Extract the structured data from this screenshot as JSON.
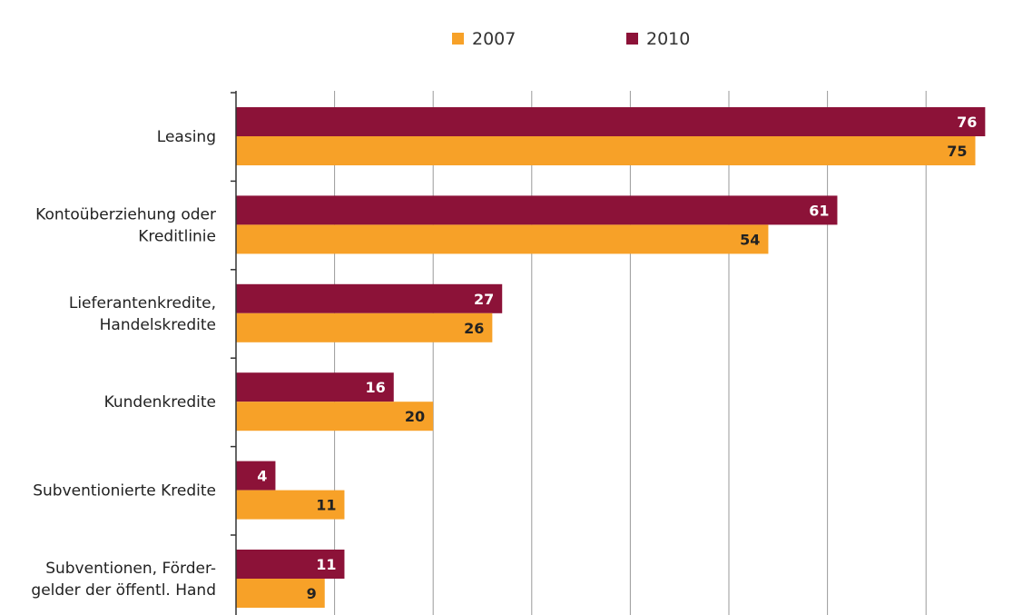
{
  "chart_data": {
    "type": "bar",
    "orientation": "horizontal",
    "categories": [
      [
        "Leasing"
      ],
      [
        "Kontoüberziehung oder",
        "Kreditlinie"
      ],
      [
        "Lieferantenkredite,",
        "Handelskredite"
      ],
      [
        "Kundenkredite"
      ],
      [
        "Subventionierte Kredite"
      ],
      [
        "Subventionen, Förder-",
        "gelder der öffentl. Hand"
      ]
    ],
    "series": [
      {
        "name": "2010",
        "color": "#8c1238",
        "label_color": "#ffffff",
        "values": [
          76,
          61,
          27,
          16,
          4,
          11
        ]
      },
      {
        "name": "2007",
        "color": "#f7a128",
        "label_color": "#222222",
        "values": [
          75,
          54,
          26,
          20,
          11,
          9
        ]
      }
    ],
    "legend_order": [
      "2007",
      "2010"
    ],
    "legend_position": "top",
    "xlim": [
      0,
      80
    ],
    "x_gridline_step": 10,
    "grid": true,
    "title": "",
    "xlabel": "",
    "ylabel": ""
  }
}
